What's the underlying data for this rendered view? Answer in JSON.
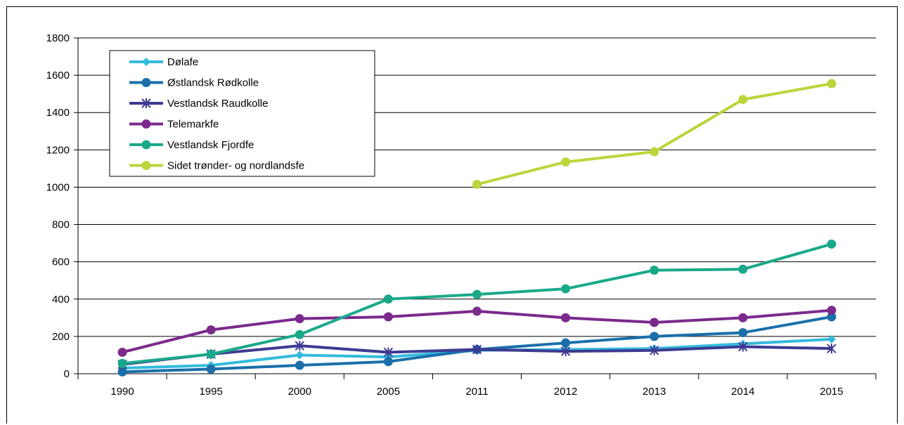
{
  "chart_data": {
    "type": "line",
    "title": "",
    "xlabel": "",
    "ylabel": "",
    "categories": [
      "1990",
      "1995",
      "2000",
      "2005",
      "2011",
      "2012",
      "2013",
      "2014",
      "2015"
    ],
    "ylim": [
      0,
      1800
    ],
    "yticks": [
      0,
      200,
      400,
      600,
      800,
      1000,
      1200,
      1400,
      1600,
      1800
    ],
    "grid": "horizontal",
    "legend_position": "top-left",
    "series": [
      {
        "name": "Dølafe",
        "color": "#33BBDD",
        "marker": "diamond",
        "values": [
          30,
          45,
          100,
          90,
          125,
          130,
          135,
          160,
          185
        ]
      },
      {
        "name": "Østlandsk Rødkolle",
        "color": "#1A6FAA",
        "marker": "circle",
        "values": [
          10,
          25,
          45,
          65,
          130,
          165,
          200,
          220,
          305
        ]
      },
      {
        "name": "Vestlandsk Raudkolle",
        "color": "#3D3A92",
        "marker": "asterisk",
        "values": [
          50,
          105,
          150,
          115,
          130,
          120,
          125,
          145,
          135
        ]
      },
      {
        "name": "Telemarkfe",
        "color": "#7B2A8C",
        "marker": "circle",
        "values": [
          115,
          235,
          295,
          305,
          335,
          300,
          275,
          300,
          340
        ]
      },
      {
        "name": "Vestlandsk Fjordfe",
        "color": "#19A98A",
        "marker": "circle",
        "values": [
          55,
          105,
          210,
          400,
          425,
          455,
          555,
          560,
          695
        ]
      },
      {
        "name": "Sidet trønder- og nordlandsfe",
        "color": "#BDD43C",
        "marker": "circle",
        "values": [
          null,
          null,
          null,
          null,
          1015,
          1135,
          1190,
          1470,
          1555
        ]
      }
    ]
  }
}
